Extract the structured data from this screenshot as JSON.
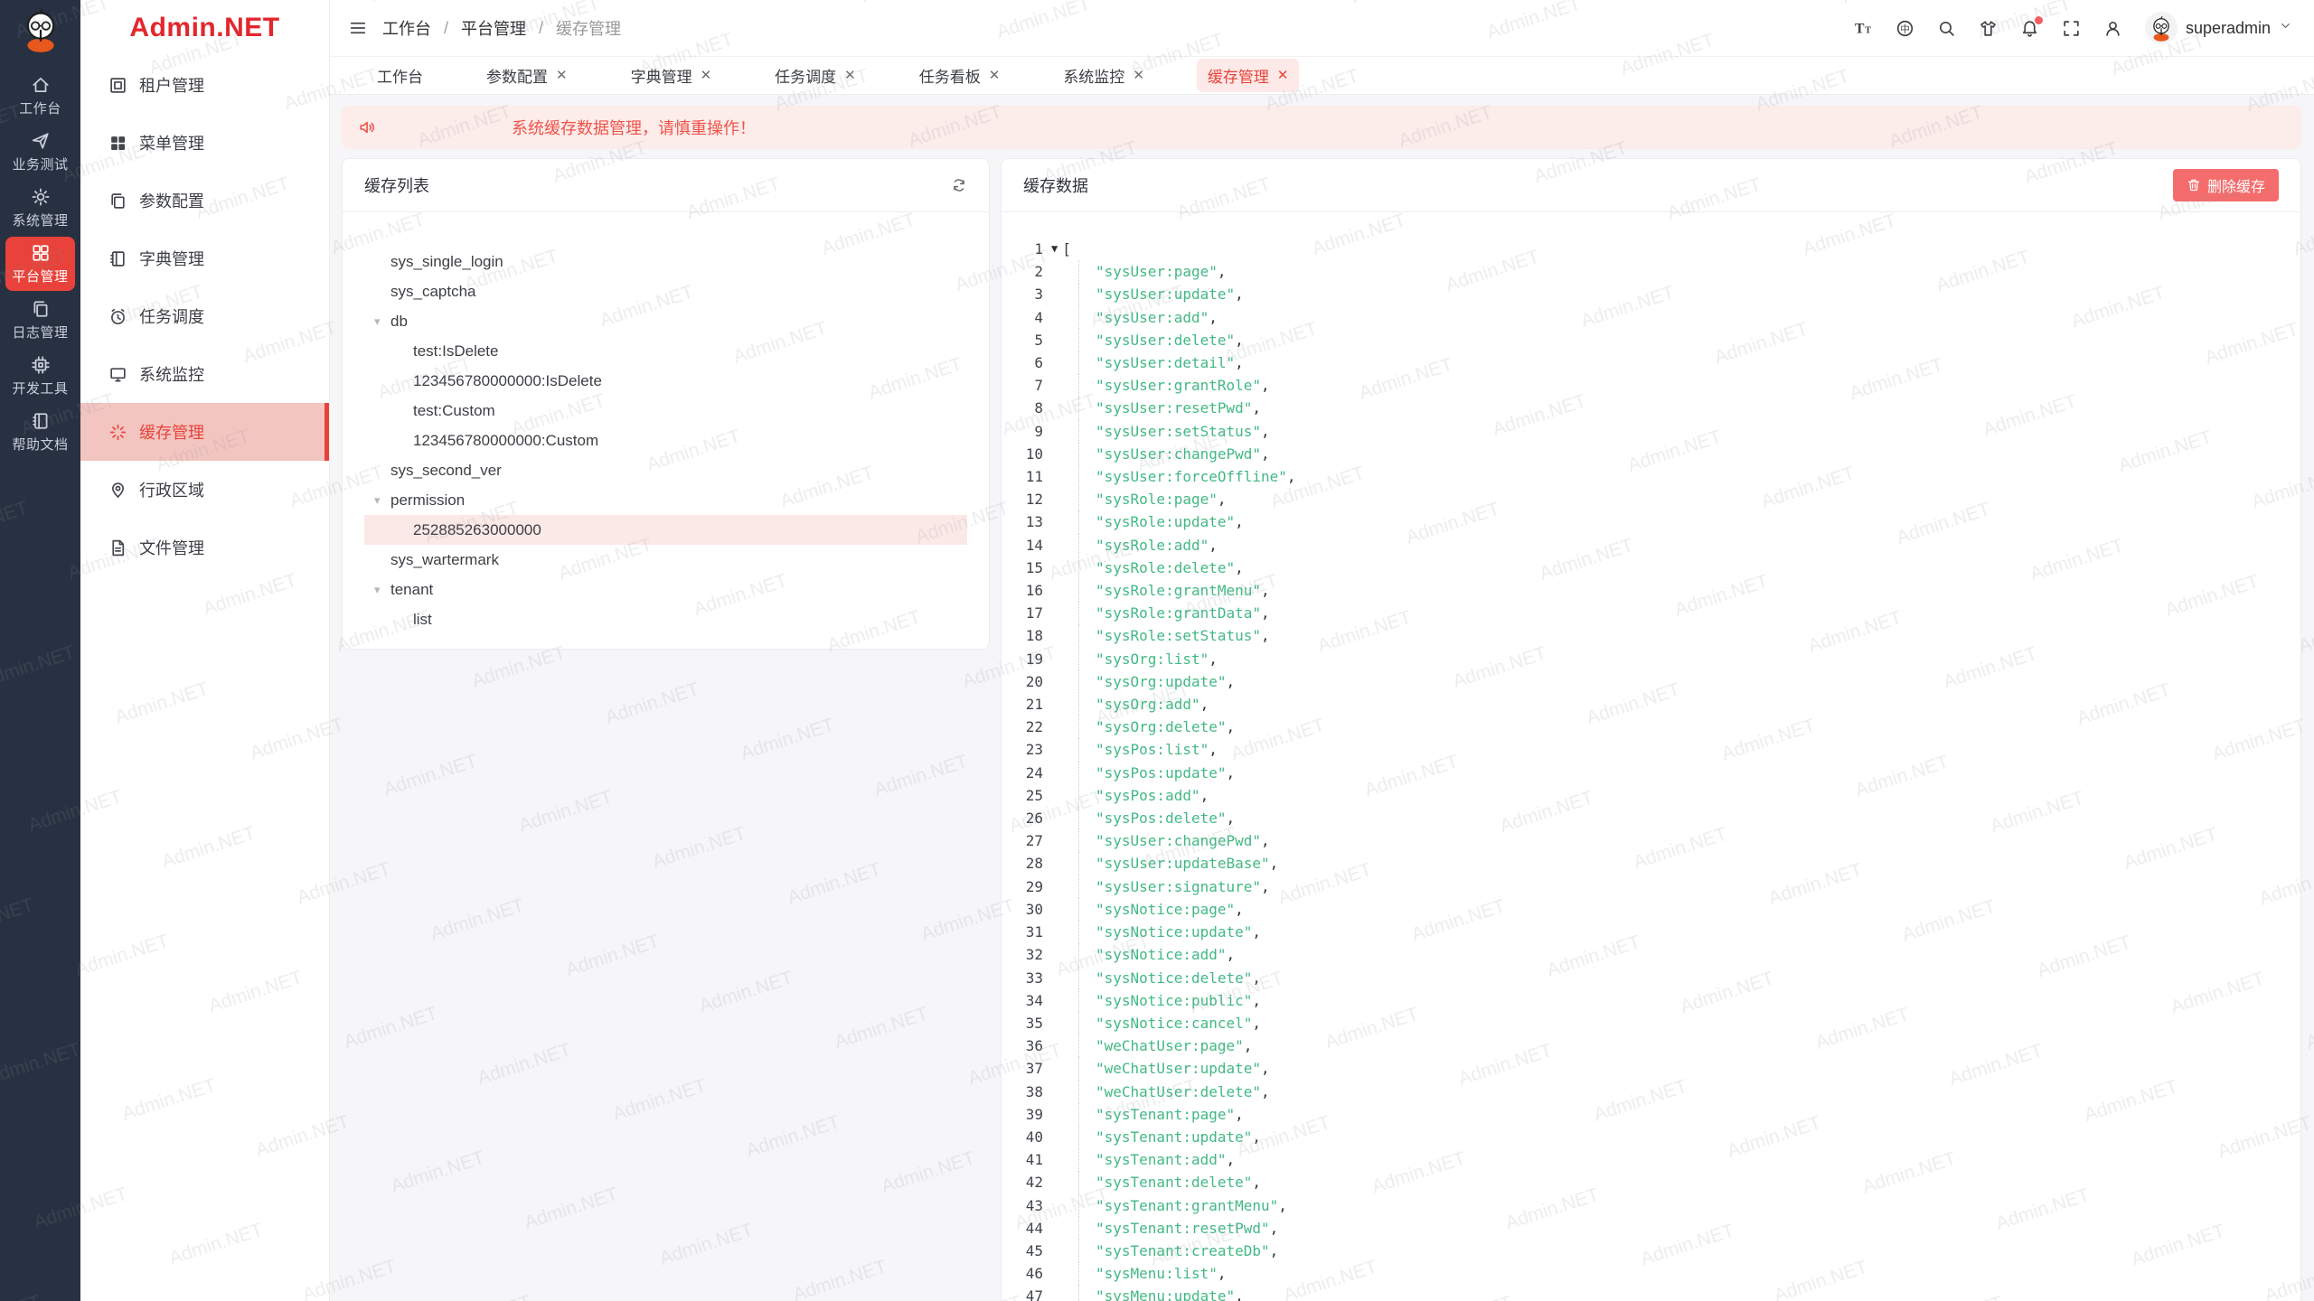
{
  "app": {
    "logo_text": "Admin.NET",
    "watermark": "Admin.NET"
  },
  "colors": {
    "primary_red": "#e8423a",
    "danger": "#f56c6c",
    "code_string_green": "#42b983",
    "rail_bg": "#283142",
    "alert_bg": "#fcecea"
  },
  "rail": {
    "items": [
      {
        "label": "工作台",
        "icon": "home",
        "active": false
      },
      {
        "label": "业务测试",
        "icon": "send",
        "active": false
      },
      {
        "label": "系统管理",
        "icon": "gear",
        "active": false
      },
      {
        "label": "平台管理",
        "icon": "grid",
        "active": true
      },
      {
        "label": "日志管理",
        "icon": "copy",
        "active": false
      },
      {
        "label": "开发工具",
        "icon": "cpu",
        "active": false
      },
      {
        "label": "帮助文档",
        "icon": "notebook",
        "active": false
      }
    ]
  },
  "sidebar": {
    "items": [
      {
        "label": "租户管理",
        "icon": "tenant",
        "active": false
      },
      {
        "label": "菜单管理",
        "icon": "gridfill",
        "active": false
      },
      {
        "label": "参数配置",
        "icon": "copy",
        "active": false
      },
      {
        "label": "字典管理",
        "icon": "notebook",
        "active": false
      },
      {
        "label": "任务调度",
        "icon": "alarm",
        "active": false
      },
      {
        "label": "系统监控",
        "icon": "monitor",
        "active": false
      },
      {
        "label": "缓存管理",
        "icon": "spinner",
        "active": true
      },
      {
        "label": "行政区域",
        "icon": "pin",
        "active": false
      },
      {
        "label": "文件管理",
        "icon": "document",
        "active": false
      }
    ]
  },
  "header": {
    "breadcrumb": {
      "0": "工作台",
      "1": "平台管理",
      "2": "缓存管理"
    },
    "icons": [
      {
        "name": "font-size",
        "icon": "fontsize"
      },
      {
        "name": "language",
        "icon": "language"
      },
      {
        "name": "search",
        "icon": "search"
      },
      {
        "name": "theme",
        "icon": "tshirt"
      },
      {
        "name": "notifications",
        "icon": "bell",
        "badge": true
      },
      {
        "name": "fullscreen",
        "icon": "fullscreen"
      },
      {
        "name": "user",
        "icon": "user"
      }
    ],
    "username": "superadmin"
  },
  "tabs": [
    {
      "label": "工作台",
      "closable": false,
      "active": false
    },
    {
      "label": "参数配置",
      "closable": true,
      "active": false
    },
    {
      "label": "字典管理",
      "closable": true,
      "active": false
    },
    {
      "label": "任务调度",
      "closable": true,
      "active": false
    },
    {
      "label": "任务看板",
      "closable": true,
      "active": false
    },
    {
      "label": "系统监控",
      "closable": true,
      "active": false
    },
    {
      "label": "缓存管理",
      "closable": true,
      "active": true
    }
  ],
  "alert": {
    "message": "系统缓存数据管理，请慎重操作！"
  },
  "cache_list": {
    "title": "缓存列表",
    "tree": [
      {
        "label": "sys_single_login",
        "level": 0,
        "caret": false,
        "selected": false
      },
      {
        "label": "sys_captcha",
        "level": 0,
        "caret": false,
        "selected": false
      },
      {
        "label": "db",
        "level": 0,
        "caret": true,
        "selected": false
      },
      {
        "label": "test:IsDelete",
        "level": 1,
        "caret": false,
        "selected": false
      },
      {
        "label": "123456780000000:IsDelete",
        "level": 1,
        "caret": false,
        "selected": false
      },
      {
        "label": "test:Custom",
        "level": 1,
        "caret": false,
        "selected": false
      },
      {
        "label": "123456780000000:Custom",
        "level": 1,
        "caret": false,
        "selected": false
      },
      {
        "label": "sys_second_ver",
        "level": 0,
        "caret": false,
        "selected": false
      },
      {
        "label": "permission",
        "level": 0,
        "caret": true,
        "selected": false
      },
      {
        "label": "252885263000000",
        "level": 1,
        "caret": false,
        "selected": true
      },
      {
        "label": "sys_wartermark",
        "level": 0,
        "caret": false,
        "selected": false
      },
      {
        "label": "tenant",
        "level": 0,
        "caret": true,
        "selected": false
      },
      {
        "label": "list",
        "level": 1,
        "caret": false,
        "selected": false
      }
    ]
  },
  "cache_data": {
    "title": "缓存数据",
    "delete_label": "删除缓存",
    "open_bracket": "[",
    "entries": [
      "sysUser:page",
      "sysUser:update",
      "sysUser:add",
      "sysUser:delete",
      "sysUser:detail",
      "sysUser:grantRole",
      "sysUser:resetPwd",
      "sysUser:setStatus",
      "sysUser:changePwd",
      "sysUser:forceOffline",
      "sysRole:page",
      "sysRole:update",
      "sysRole:add",
      "sysRole:delete",
      "sysRole:grantMenu",
      "sysRole:grantData",
      "sysRole:setStatus",
      "sysOrg:list",
      "sysOrg:update",
      "sysOrg:add",
      "sysOrg:delete",
      "sysPos:list",
      "sysPos:update",
      "sysPos:add",
      "sysPos:delete",
      "sysUser:changePwd",
      "sysUser:updateBase",
      "sysUser:signature",
      "sysNotice:page",
      "sysNotice:update",
      "sysNotice:add",
      "sysNotice:delete",
      "sysNotice:public",
      "sysNotice:cancel",
      "weChatUser:page",
      "weChatUser:update",
      "weChatUser:delete",
      "sysTenant:page",
      "sysTenant:update",
      "sysTenant:add",
      "sysTenant:delete",
      "sysTenant:grantMenu",
      "sysTenant:resetPwd",
      "sysTenant:createDb",
      "sysMenu:list",
      "sysMenu:update"
    ]
  }
}
